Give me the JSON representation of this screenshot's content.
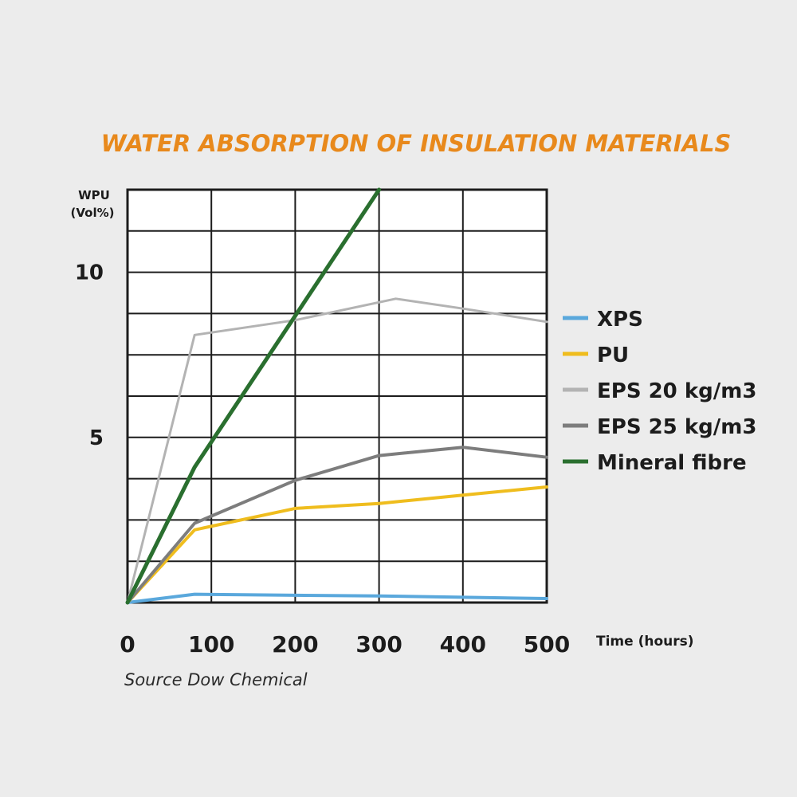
{
  "chart_data": {
    "type": "line",
    "title": "WATER ABSORPTION OF INSULATION MATERIALS",
    "ylabel_line1": "WPU",
    "ylabel_line2": "(Vol%)",
    "xlabel": "Time (hours)",
    "source": "Source Dow Chemical",
    "xlim": [
      0,
      500
    ],
    "ylim": [
      0,
      12.5
    ],
    "x_ticks": [
      "0",
      "100",
      "200",
      "300",
      "400",
      "500"
    ],
    "y_ticks": [
      {
        "value": 5,
        "label": "5"
      },
      {
        "value": 10,
        "label": "10"
      }
    ],
    "grid": true,
    "legend_position": "right",
    "series": [
      {
        "name": "XPS",
        "color": "#5aa8dc",
        "points": [
          [
            0,
            0
          ],
          [
            80,
            0.25
          ],
          [
            200,
            0.22
          ],
          [
            300,
            0.2
          ],
          [
            400,
            0.16
          ],
          [
            500,
            0.12
          ]
        ]
      },
      {
        "name": "PU",
        "color": "#efbd1e",
        "points": [
          [
            0,
            0
          ],
          [
            80,
            2.2
          ],
          [
            200,
            2.85
          ],
          [
            300,
            3.0
          ],
          [
            400,
            3.25
          ],
          [
            500,
            3.5
          ]
        ]
      },
      {
        "name": "EPS 20 kg/m3",
        "color": "#b3b3b3",
        "points": [
          [
            0,
            0
          ],
          [
            80,
            8.1
          ],
          [
            200,
            8.55
          ],
          [
            320,
            9.2
          ],
          [
            400,
            8.9
          ],
          [
            500,
            8.5
          ]
        ]
      },
      {
        "name": "EPS 25 kg/m3",
        "color": "#7d7d7d",
        "points": [
          [
            0,
            0
          ],
          [
            80,
            2.4
          ],
          [
            200,
            3.7
          ],
          [
            300,
            4.45
          ],
          [
            400,
            4.7
          ],
          [
            500,
            4.4
          ]
        ]
      },
      {
        "name": "Mineral fibre",
        "color": "#2a6f2f",
        "points": [
          [
            0,
            0
          ],
          [
            80,
            4.1
          ],
          [
            300,
            12.5
          ]
        ]
      }
    ]
  }
}
